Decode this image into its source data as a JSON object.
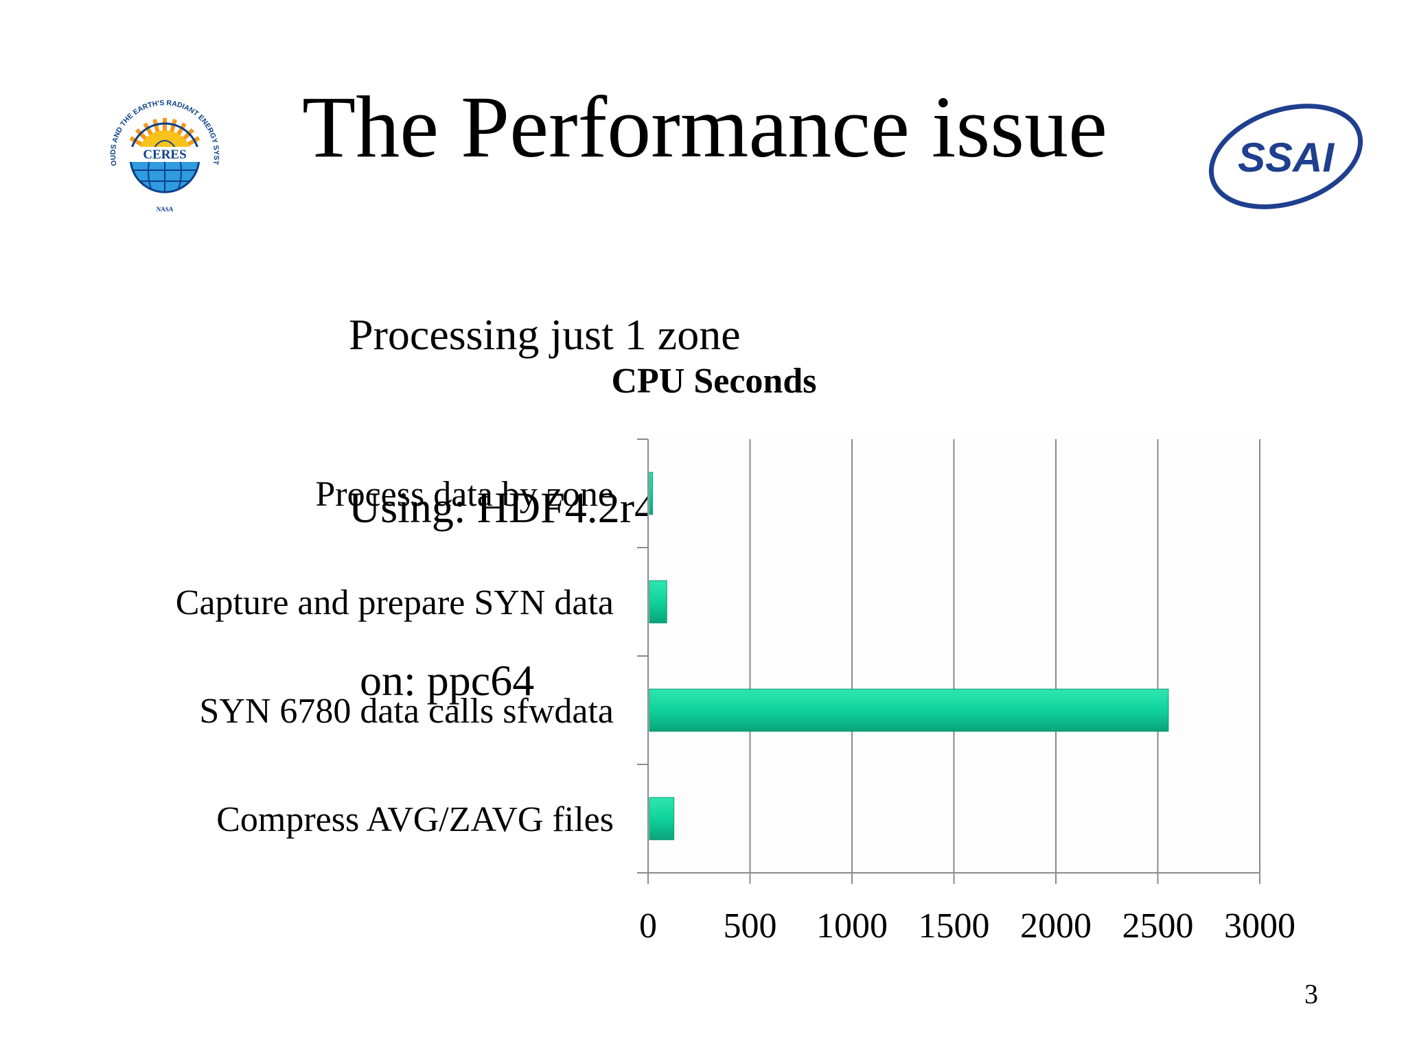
{
  "slide": {
    "title": "The Performance issue",
    "subtitle_lines": [
      "Processing just 1 zone",
      "Using: HDF4.2r4",
      " on: ppc64"
    ],
    "page_number": "3"
  },
  "logos": {
    "ceres": {
      "name": "CERES",
      "ring_text": "CLOUDS AND THE EARTH'S RADIANT ENERGY SYSTEM",
      "footer": "NASA"
    },
    "ssai": {
      "name": "SSAI",
      "color": "#1f3f8f"
    }
  },
  "chart_data": {
    "type": "bar",
    "orientation": "horizontal",
    "title": "CPU Seconds",
    "categories": [
      "Process data by zone",
      "Capture and prepare SYN data",
      "SYN 6780 data calls sfwdata",
      "Compress AVG/ZAVG files"
    ],
    "values": [
      15,
      85,
      2545,
      120
    ],
    "xlim": [
      0,
      3000
    ],
    "xticks": [
      0,
      500,
      1000,
      1500,
      2000,
      2500,
      3000
    ],
    "grid": true,
    "legend": "none",
    "bar_color": "#10d39a"
  }
}
